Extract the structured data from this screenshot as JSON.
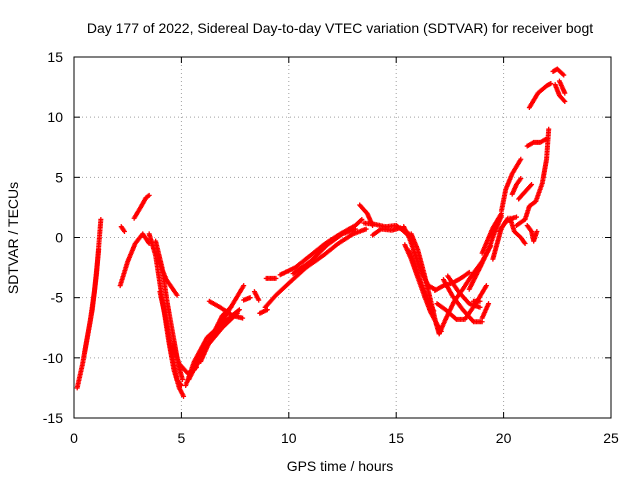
{
  "chart_data": {
    "type": "scatter",
    "title": "Day 177 of 2022, Sidereal Day-to-day VTEC variation (SDTVAR) for receiver bogt",
    "xlabel": "GPS time / hours",
    "ylabel": "SDTVAR / TECUs",
    "xlim": [
      0,
      25
    ],
    "ylim": [
      -15,
      15
    ],
    "xticks": [
      0,
      5,
      10,
      15,
      20,
      25
    ],
    "yticks": [
      -15,
      -10,
      -5,
      0,
      5,
      10,
      15
    ],
    "xtick_labels": [
      "0",
      "5",
      "10",
      "15",
      "20",
      "25"
    ],
    "ytick_labels": [
      "-15",
      "-10",
      "-5",
      "0",
      "5",
      "10",
      "15"
    ],
    "grid": true,
    "marker": "+",
    "series": [
      {
        "name": "SDTVAR",
        "color": "#ff0000",
        "tracks": [
          [
            [
              0.15,
              -12.5
            ],
            [
              0.4,
              -10.5
            ],
            [
              0.6,
              -8.5
            ],
            [
              0.85,
              -6.0
            ],
            [
              1.05,
              -3.0
            ],
            [
              1.25,
              1.5
            ]
          ],
          [
            [
              0.5,
              -9.5
            ],
            [
              0.75,
              -7.0
            ],
            [
              0.95,
              -4.5
            ],
            [
              1.15,
              -1.0
            ]
          ],
          [
            [
              2.15,
              -4.0
            ],
            [
              2.5,
              -2.0
            ],
            [
              2.85,
              -0.5
            ],
            [
              3.2,
              0.3
            ],
            [
              3.5,
              -0.5
            ]
          ],
          [
            [
              2.2,
              0.9
            ],
            [
              2.35,
              0.5
            ]
          ],
          [
            [
              2.8,
              1.6
            ],
            [
              3.1,
              2.5
            ],
            [
              3.35,
              3.3
            ],
            [
              3.5,
              3.5
            ]
          ],
          [
            [
              3.5,
              0.3
            ],
            [
              3.8,
              -1.5
            ],
            [
              4.1,
              -5.0
            ],
            [
              4.4,
              -8.5
            ],
            [
              4.65,
              -11.0
            ],
            [
              4.9,
              -12.5
            ],
            [
              5.1,
              -13.2
            ]
          ],
          [
            [
              3.8,
              -0.3
            ],
            [
              4.1,
              -2.5
            ],
            [
              4.35,
              -5.5
            ],
            [
              4.6,
              -8.0
            ],
            [
              4.85,
              -10.5
            ],
            [
              5.05,
              -11.8
            ]
          ],
          [
            [
              3.9,
              -1.8
            ],
            [
              4.3,
              -3.5
            ],
            [
              4.8,
              -4.8
            ]
          ],
          [
            [
              4.0,
              -4.5
            ],
            [
              4.3,
              -7.0
            ],
            [
              4.6,
              -10.0
            ],
            [
              4.8,
              -11.8
            ],
            [
              5.0,
              -12.3
            ]
          ],
          [
            [
              4.6,
              -9.0
            ],
            [
              4.9,
              -10.5
            ],
            [
              5.3,
              -11.3
            ],
            [
              5.7,
              -10.8
            ]
          ],
          [
            [
              5.2,
              -12.3
            ],
            [
              5.6,
              -10.3
            ],
            [
              6.2,
              -8.3
            ],
            [
              7.0,
              -7.0
            ],
            [
              7.7,
              -6.0
            ]
          ],
          [
            [
              5.35,
              -11.8
            ],
            [
              5.9,
              -9.8
            ],
            [
              6.6,
              -7.8
            ],
            [
              7.3,
              -5.8
            ],
            [
              7.9,
              -4.0
            ]
          ],
          [
            [
              5.6,
              -11.0
            ],
            [
              6.2,
              -9.0
            ],
            [
              6.9,
              -7.5
            ],
            [
              7.6,
              -6.3
            ]
          ],
          [
            [
              5.9,
              -10.3
            ],
            [
              6.4,
              -8.3
            ],
            [
              6.9,
              -6.5
            ],
            [
              7.3,
              -5.8
            ]
          ],
          [
            [
              6.3,
              -5.3
            ],
            [
              6.8,
              -5.8
            ],
            [
              7.4,
              -6.5
            ],
            [
              7.85,
              -6.7
            ]
          ],
          [
            [
              7.9,
              -5.2
            ],
            [
              8.2,
              -5.0
            ]
          ],
          [
            [
              8.4,
              -4.5
            ],
            [
              8.6,
              -5.2
            ]
          ],
          [
            [
              8.65,
              -6.3
            ],
            [
              9.0,
              -6.0
            ]
          ],
          [
            [
              8.95,
              -3.4
            ],
            [
              9.4,
              -3.4
            ]
          ],
          [
            [
              8.9,
              -5.8
            ],
            [
              9.4,
              -4.8
            ],
            [
              10.0,
              -3.8
            ],
            [
              10.8,
              -2.5
            ],
            [
              11.6,
              -1.5
            ],
            [
              12.3,
              -0.5
            ],
            [
              13.0,
              0.3
            ],
            [
              13.6,
              0.7
            ]
          ],
          [
            [
              9.6,
              -3.1
            ],
            [
              10.3,
              -2.5
            ],
            [
              11.0,
              -1.5
            ],
            [
              11.7,
              -0.5
            ],
            [
              12.4,
              0.3
            ],
            [
              13.1,
              1.0
            ],
            [
              13.4,
              1.5
            ]
          ],
          [
            [
              10.2,
              -3.0
            ],
            [
              11.0,
              -2.0
            ],
            [
              11.8,
              -0.6
            ],
            [
              12.5,
              0.3
            ],
            [
              13.1,
              0.7
            ]
          ],
          [
            [
              13.3,
              2.7
            ],
            [
              13.65,
              2.0
            ],
            [
              13.9,
              1.0
            ]
          ],
          [
            [
              13.5,
              1.2
            ],
            [
              14.0,
              1.1
            ],
            [
              14.5,
              0.9
            ],
            [
              15.0,
              1.0
            ],
            [
              15.3,
              0.6
            ],
            [
              15.55,
              0.2
            ]
          ],
          [
            [
              13.9,
              0.2
            ],
            [
              14.3,
              0.7
            ],
            [
              14.8,
              0.6
            ],
            [
              15.2,
              0.8
            ],
            [
              15.6,
              0.3
            ]
          ],
          [
            [
              15.35,
              0.9
            ],
            [
              15.6,
              0.0
            ],
            [
              15.9,
              -1.5
            ],
            [
              16.2,
              -3.0
            ],
            [
              16.5,
              -4.0
            ],
            [
              16.8,
              -4.3
            ]
          ],
          [
            [
              15.4,
              -0.6
            ],
            [
              15.7,
              -1.8
            ],
            [
              16.0,
              -3.3
            ],
            [
              16.3,
              -4.8
            ],
            [
              16.6,
              -6.2
            ],
            [
              16.9,
              -7.2
            ],
            [
              17.1,
              -7.8
            ]
          ],
          [
            [
              15.7,
              0.3
            ],
            [
              16.0,
              -1.0
            ],
            [
              16.3,
              -3.0
            ],
            [
              16.6,
              -5.2
            ],
            [
              16.85,
              -7.1
            ],
            [
              17.0,
              -8.0
            ]
          ],
          [
            [
              15.6,
              -1.1
            ],
            [
              15.9,
              -2.4
            ],
            [
              16.2,
              -4.0
            ],
            [
              16.5,
              -5.3
            ],
            [
              16.75,
              -6.1
            ]
          ],
          [
            [
              16.8,
              -4.4
            ],
            [
              17.2,
              -4.0
            ],
            [
              17.6,
              -3.8
            ],
            [
              18.0,
              -3.4
            ],
            [
              18.4,
              -2.9
            ]
          ],
          [
            [
              17.0,
              -8.0
            ],
            [
              17.3,
              -6.8
            ],
            [
              17.7,
              -5.3
            ],
            [
              18.1,
              -4.3
            ],
            [
              18.5,
              -3.2
            ],
            [
              19.0,
              -2.0
            ],
            [
              19.4,
              -0.7
            ]
          ],
          [
            [
              16.9,
              -5.5
            ],
            [
              17.3,
              -6.0
            ],
            [
              17.8,
              -6.8
            ],
            [
              18.2,
              -6.8
            ],
            [
              18.7,
              -5.5
            ],
            [
              19.2,
              -4.0
            ]
          ],
          [
            [
              17.2,
              -3.5
            ],
            [
              17.6,
              -4.8
            ],
            [
              18.1,
              -6.0
            ],
            [
              18.6,
              -7.0
            ],
            [
              19.0,
              -7.0
            ]
          ],
          [
            [
              17.4,
              -3.2
            ],
            [
              17.9,
              -4.5
            ],
            [
              18.4,
              -5.5
            ],
            [
              18.9,
              -5.8
            ]
          ],
          [
            [
              18.4,
              -4.3
            ],
            [
              18.9,
              -2.5
            ],
            [
              19.3,
              -1.0
            ],
            [
              19.6,
              0.5
            ],
            [
              19.9,
              1.8
            ]
          ],
          [
            [
              18.6,
              -5.3
            ],
            [
              18.9,
              -5.3
            ]
          ],
          [
            [
              19.0,
              -6.7
            ],
            [
              19.3,
              -5.5
            ]
          ],
          [
            [
              19.0,
              -1.3
            ],
            [
              19.5,
              0.8
            ],
            [
              19.9,
              2.0
            ]
          ],
          [
            [
              19.5,
              -1.8
            ],
            [
              19.7,
              -0.5
            ],
            [
              19.9,
              0.8
            ],
            [
              20.2,
              1.6
            ]
          ],
          [
            [
              19.8,
              0.5
            ],
            [
              20.1,
              1.3
            ],
            [
              20.4,
              1.6
            ],
            [
              20.6,
              1.7
            ]
          ],
          [
            [
              19.9,
              2.2
            ],
            [
              20.1,
              4.0
            ],
            [
              20.4,
              5.3
            ],
            [
              20.8,
              6.5
            ]
          ],
          [
            [
              20.3,
              1.6
            ],
            [
              20.5,
              0.5
            ],
            [
              20.8,
              0.0
            ],
            [
              21.0,
              -0.5
            ]
          ],
          [
            [
              20.4,
              3.6
            ],
            [
              20.6,
              4.4
            ],
            [
              20.8,
              4.9
            ]
          ],
          [
            [
              20.7,
              3.2
            ],
            [
              21.0,
              3.8
            ],
            [
              21.3,
              4.4
            ]
          ],
          [
            [
              20.6,
              1.0
            ],
            [
              21.0,
              1.5
            ],
            [
              21.2,
              2.6
            ]
          ],
          [
            [
              21.1,
              7.6
            ],
            [
              21.4,
              7.9
            ],
            [
              21.7,
              7.9
            ],
            [
              22.0,
              8.2
            ]
          ],
          [
            [
              21.2,
              2.6
            ],
            [
              21.5,
              3.0
            ],
            [
              21.8,
              4.5
            ],
            [
              22.0,
              6.5
            ],
            [
              22.1,
              9.0
            ]
          ],
          [
            [
              21.1,
              1.0
            ],
            [
              21.3,
              0.5
            ],
            [
              21.4,
              -0.3
            ],
            [
              21.55,
              0.5
            ]
          ],
          [
            [
              21.2,
              10.8
            ],
            [
              21.6,
              12.0
            ],
            [
              22.0,
              12.6
            ],
            [
              22.2,
              12.8
            ]
          ],
          [
            [
              22.3,
              13.8
            ],
            [
              22.5,
              14.0
            ],
            [
              22.8,
              13.5
            ]
          ],
          [
            [
              22.4,
              12.7
            ],
            [
              22.6,
              11.8
            ],
            [
              22.85,
              11.3
            ]
          ],
          [
            [
              22.6,
              13.0
            ],
            [
              22.75,
              12.4
            ],
            [
              22.85,
              12.0
            ]
          ]
        ]
      }
    ]
  }
}
